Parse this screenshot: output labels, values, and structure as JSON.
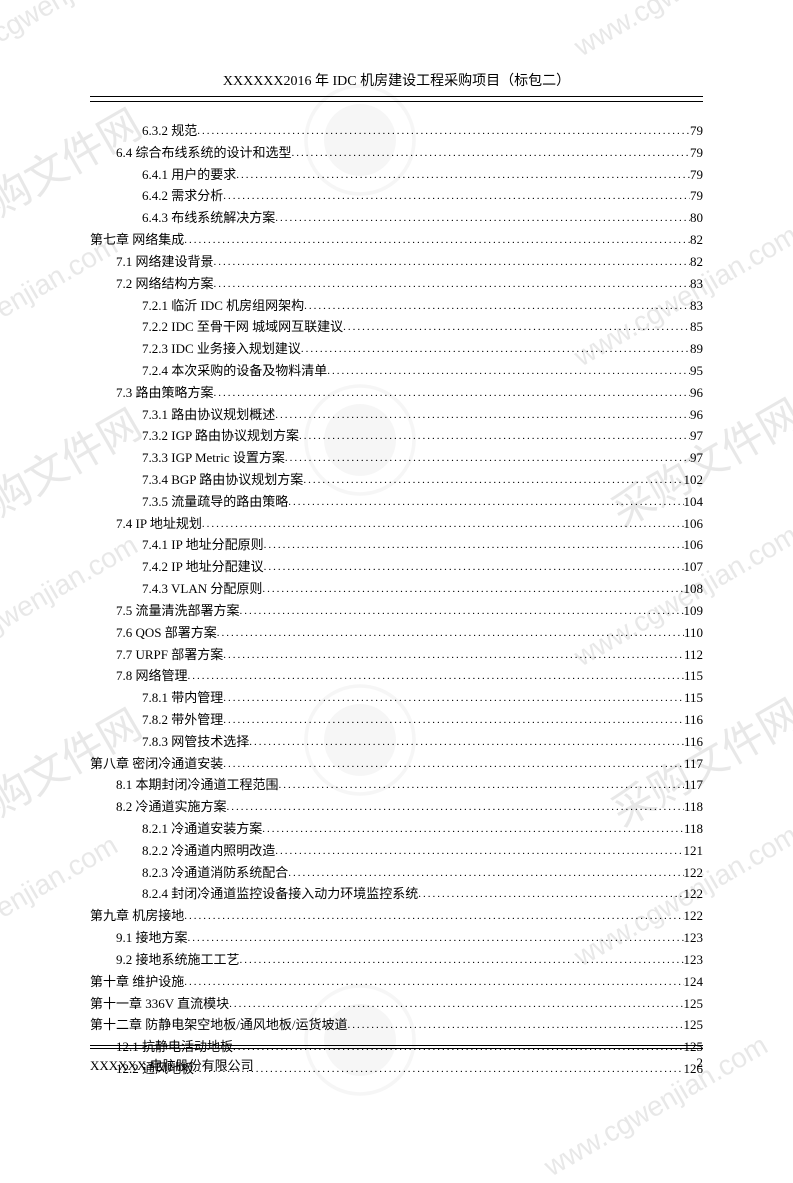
{
  "header": {
    "title": "XXXXXX2016 年 IDC 机房建设工程采购项目（标包二）"
  },
  "footer": {
    "company": "XXXXXX 电脑股份有限公司",
    "page_number": "2"
  },
  "watermarks": {
    "text": "www.cgwenjian.com",
    "logo_text": "采购文件网"
  },
  "toc": [
    {
      "indent": 3,
      "label": "6.3.2 规范",
      "page": "79"
    },
    {
      "indent": 2,
      "label": "6.4 综合布线系统的设计和选型",
      "page": "79"
    },
    {
      "indent": 3,
      "label": "6.4.1 用户的要求",
      "page": "79"
    },
    {
      "indent": 3,
      "label": "6.4.2 需求分析",
      "page": "79"
    },
    {
      "indent": 3,
      "label": "6.4.3 布线系统解决方案",
      "page": "80"
    },
    {
      "indent": 1,
      "label": "第七章  网络集成",
      "page": "82"
    },
    {
      "indent": 2,
      "label": "7.1 网络建设背景",
      "page": "82"
    },
    {
      "indent": 2,
      "label": "7.2 网络结构方案",
      "page": "83"
    },
    {
      "indent": 3,
      "label": "7.2.1 临沂 IDC 机房组网架构",
      "page": "83"
    },
    {
      "indent": 3,
      "label": "7.2.2 IDC 至骨干网 城域网互联建议",
      "page": "85"
    },
    {
      "indent": 3,
      "label": "7.2.3 IDC 业务接入规划建议",
      "page": "89"
    },
    {
      "indent": 3,
      "label": "7.2.4 本次采购的设备及物料清单",
      "page": "95"
    },
    {
      "indent": 2,
      "label": "7.3 路由策略方案",
      "page": "96"
    },
    {
      "indent": 3,
      "label": "7.3.1 路由协议规划概述",
      "page": "96"
    },
    {
      "indent": 3,
      "label": "7.3.2 IGP 路由协议规划方案",
      "page": "97"
    },
    {
      "indent": 3,
      "label": "7.3.3 IGP Metric 设置方案",
      "page": "97"
    },
    {
      "indent": 3,
      "label": "7.3.4 BGP 路由协议规划方案",
      "page": "102"
    },
    {
      "indent": 3,
      "label": "7.3.5 流量疏导的路由策略",
      "page": "104"
    },
    {
      "indent": 2,
      "label": "7.4 IP 地址规划",
      "page": "106"
    },
    {
      "indent": 3,
      "label": "7.4.1 IP 地址分配原则",
      "page": "106"
    },
    {
      "indent": 3,
      "label": "7.4.2 IP 地址分配建议",
      "page": "107"
    },
    {
      "indent": 3,
      "label": "7.4.3 VLAN 分配原则",
      "page": "108"
    },
    {
      "indent": 2,
      "label": "7.5 流量清洗部署方案",
      "page": "109"
    },
    {
      "indent": 2,
      "label": "7.6 QOS 部署方案",
      "page": "110"
    },
    {
      "indent": 2,
      "label": "7.7 URPF 部署方案",
      "page": "112"
    },
    {
      "indent": 2,
      "label": "7.8 网络管理",
      "page": "115"
    },
    {
      "indent": 3,
      "label": "7.8.1 带内管理",
      "page": "115"
    },
    {
      "indent": 3,
      "label": "7.8.2 带外管理",
      "page": "116"
    },
    {
      "indent": 3,
      "label": "7.8.3 网管技术选择",
      "page": "116"
    },
    {
      "indent": 1,
      "label": "第八章  密闭冷通道安装",
      "page": "117"
    },
    {
      "indent": 2,
      "label": "8.1 本期封闭冷通道工程范围",
      "page": "117"
    },
    {
      "indent": 2,
      "label": "8.2 冷通道实施方案",
      "page": "118"
    },
    {
      "indent": 3,
      "label": "8.2.1 冷通道安装方案",
      "page": "118"
    },
    {
      "indent": 3,
      "label": "8.2.2 冷通道内照明改造",
      "page": "121"
    },
    {
      "indent": 3,
      "label": "8.2.3 冷通道消防系统配合",
      "page": "122"
    },
    {
      "indent": 3,
      "label": "8.2.4 封闭冷通道监控设备接入动力环境监控系统",
      "page": "122"
    },
    {
      "indent": 1,
      "label": "第九章  机房接地",
      "page": "122"
    },
    {
      "indent": 2,
      "label": "9.1 接地方案",
      "page": "123"
    },
    {
      "indent": 2,
      "label": "9.2 接地系统施工工艺",
      "page": "123"
    },
    {
      "indent": 1,
      "label": "第十章  维护设施",
      "page": "124"
    },
    {
      "indent": 1,
      "label": "第十一章  336V 直流模块",
      "page": "125"
    },
    {
      "indent": 1,
      "label": "第十二章  防静电架空地板/通风地板/运货坡道",
      "page": "125"
    },
    {
      "indent": 2,
      "label": "12.1 抗静电活动地板",
      "page": "125"
    },
    {
      "indent": 2,
      "label": "12.2 通风地板",
      "page": "126"
    }
  ]
}
